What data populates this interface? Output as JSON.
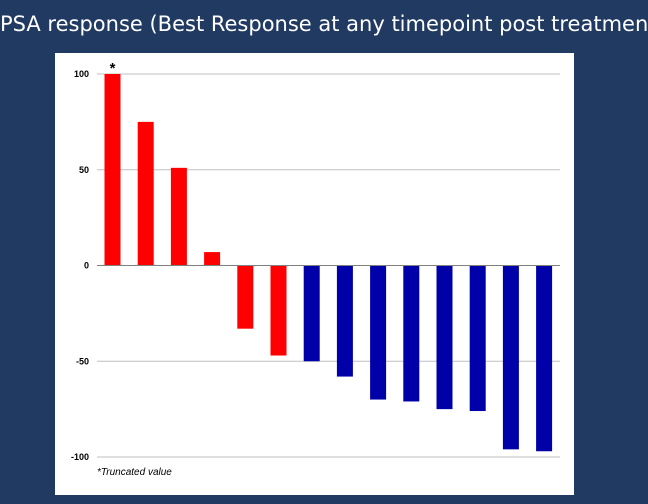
{
  "slide": {
    "title": "PSA response (Best Response at any timepoint post treatment)",
    "footnote": "*Truncated value"
  },
  "colors": {
    "background": "#213a62",
    "panel": "#ffffff",
    "positive_group": "#ff0000",
    "negative_group": "#0000a8",
    "gridline": "#c0c0c0",
    "axis": "#808080"
  },
  "chart_data": {
    "type": "bar",
    "title": "",
    "xlabel": "",
    "ylabel": "",
    "ylim": [
      -100,
      100
    ],
    "yticks": [
      100,
      50,
      0,
      -50,
      -100
    ],
    "grid": true,
    "legend": "none",
    "values": [
      100,
      75,
      51,
      7,
      -33,
      -47,
      -50,
      -58,
      -70,
      -71,
      -75,
      -76,
      -96,
      -97
    ],
    "bar_colors": [
      "#ff0000",
      "#ff0000",
      "#ff0000",
      "#ff0000",
      "#ff0000",
      "#ff0000",
      "#0000a8",
      "#0000a8",
      "#0000a8",
      "#0000a8",
      "#0000a8",
      "#0000a8",
      "#0000a8",
      "#0000a8"
    ],
    "annotations": [
      {
        "bar_index": 0,
        "text": "*"
      }
    ]
  }
}
